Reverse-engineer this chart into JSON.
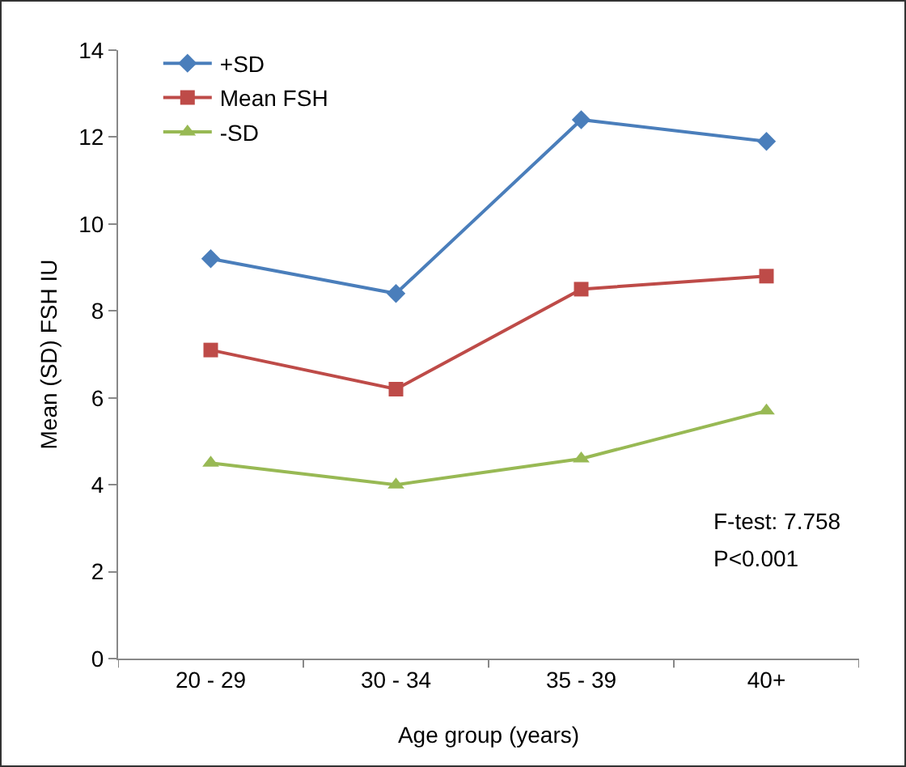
{
  "chart_data": {
    "type": "line",
    "xlabel": "Age group (years)",
    "ylabel": "Mean (SD) FSH IU",
    "categories": [
      "20 - 29",
      "30 - 34",
      "35 - 39",
      "40+"
    ],
    "series": [
      {
        "name": "+SD",
        "color": "#4a7ebb",
        "marker": "diamond",
        "values": [
          9.2,
          8.4,
          12.4,
          11.9
        ]
      },
      {
        "name": "Mean FSH",
        "color": "#be4b48",
        "marker": "square",
        "values": [
          7.1,
          6.2,
          8.5,
          8.8
        ]
      },
      {
        "name": "-SD",
        "color": "#98b954",
        "marker": "triangle",
        "values": [
          4.5,
          4.0,
          4.6,
          5.7
        ]
      }
    ],
    "ylim": [
      0,
      14
    ],
    "yticks": [
      0,
      2,
      4,
      6,
      8,
      10,
      12,
      14
    ],
    "grid": false,
    "legend": "top left",
    "annotations": [
      "F-test: 7.758",
      "P<0.001"
    ]
  }
}
